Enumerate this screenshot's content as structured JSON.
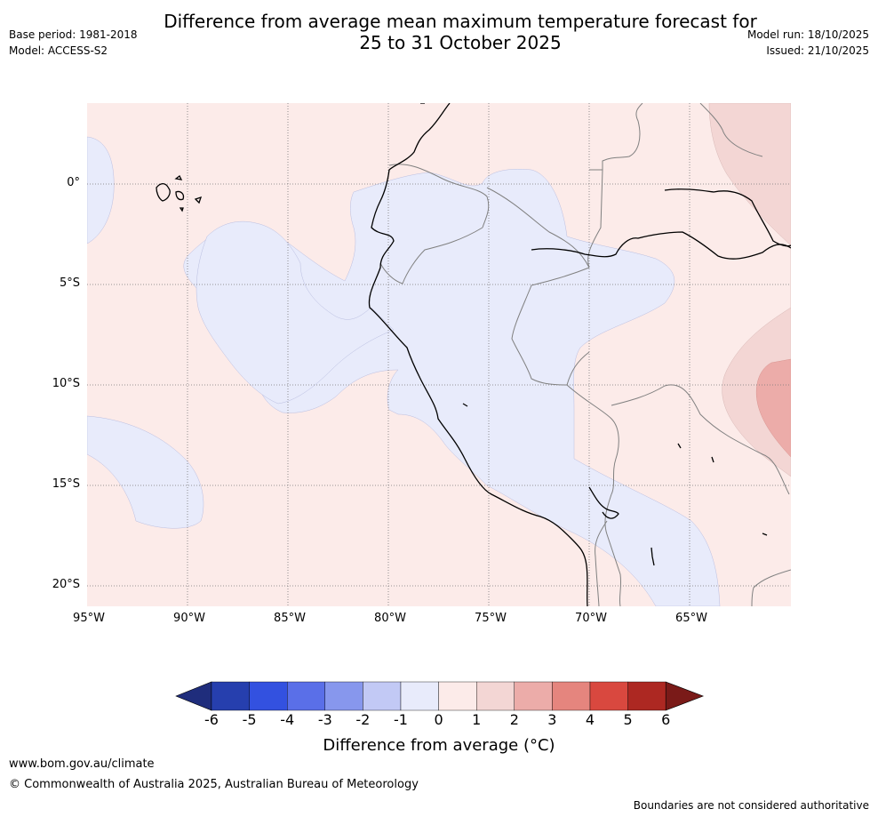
{
  "header": {
    "title_line1": "Difference from average mean maximum temperature forecast for",
    "title_line2": "25 to 31 October 2025",
    "base_period": "Base period: 1981-2018",
    "model": "Model: ACCESS-S2",
    "model_run": "Model run: 18/10/2025",
    "issued": "Issued: 21/10/2025"
  },
  "map": {
    "lat_labels": [
      "0°",
      "5°S",
      "10°S",
      "15°S",
      "20°S"
    ],
    "lon_labels": [
      "95°W",
      "90°W",
      "85°W",
      "80°W",
      "75°W",
      "70°W",
      "65°W"
    ],
    "colors": {
      "anomaly_neg1_0": "#e8ebfb",
      "anomaly_0_1": "#fcebe9",
      "anomaly_1_2": "#f3d6d4",
      "anomaly_2_3": "#ecaca9",
      "coast": "#000000",
      "border": "#808080",
      "grid": "#777777"
    }
  },
  "colorbar": {
    "ticks": [
      "-6",
      "-5",
      "-4",
      "-3",
      "-2",
      "-1",
      "0",
      "1",
      "2",
      "3",
      "4",
      "5",
      "6"
    ],
    "colors": [
      "#1f2d7c",
      "#263fae",
      "#3351e0",
      "#5a6fe8",
      "#8797ed",
      "#c2c9f5",
      "#e8ebfb",
      "#fcebe9",
      "#f3d6d4",
      "#ecaca9",
      "#e5857e",
      "#d9483f",
      "#ad2822",
      "#7a1a18"
    ],
    "label": "Difference from average (°C)"
  },
  "footer": {
    "url": "www.bom.gov.au/climate",
    "copyright": "© Commonwealth of Australia 2025, Australian Bureau of Meteorology",
    "disclaimer": "Boundaries are not considered authoritative"
  }
}
